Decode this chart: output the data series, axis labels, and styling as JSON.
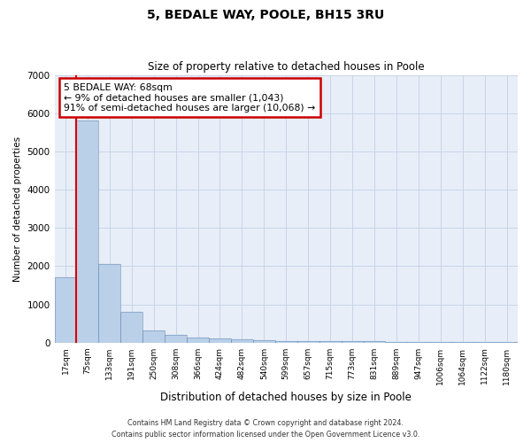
{
  "title": "5, BEDALE WAY, POOLE, BH15 3RU",
  "subtitle": "Size of property relative to detached houses in Poole",
  "xlabel": "Distribution of detached houses by size in Poole",
  "ylabel": "Number of detached properties",
  "bar_color": "#bad0e8",
  "annotation_text": "5 BEDALE WAY: 68sqm\n← 9% of detached houses are smaller (1,043)\n91% of semi-detached houses are larger (10,068) →",
  "annotation_box_color": "#ffffff",
  "annotation_box_edge_color": "#cc0000",
  "footer_line1": "Contains HM Land Registry data © Crown copyright and database right 2024.",
  "footer_line2": "Contains public sector information licensed under the Open Government Licence v3.0.",
  "grid_color": "#c8d4e8",
  "background_color": "#e8eef8",
  "categories": [
    "17sqm",
    "75sqm",
    "133sqm",
    "191sqm",
    "250sqm",
    "308sqm",
    "366sqm",
    "424sqm",
    "482sqm",
    "540sqm",
    "599sqm",
    "657sqm",
    "715sqm",
    "773sqm",
    "831sqm",
    "889sqm",
    "947sqm",
    "1006sqm",
    "1064sqm",
    "1122sqm",
    "1180sqm"
  ],
  "values": [
    1700,
    5800,
    2050,
    800,
    320,
    200,
    140,
    100,
    75,
    55,
    50,
    45,
    40,
    35,
    30,
    25,
    20,
    15,
    12,
    10,
    8
  ],
  "ylim": [
    0,
    7000
  ],
  "yticks": [
    0,
    1000,
    2000,
    3000,
    4000,
    5000,
    6000,
    7000
  ],
  "red_line_bar_index": 1,
  "fig_width": 6.0,
  "fig_height": 5.0,
  "dpi": 100
}
